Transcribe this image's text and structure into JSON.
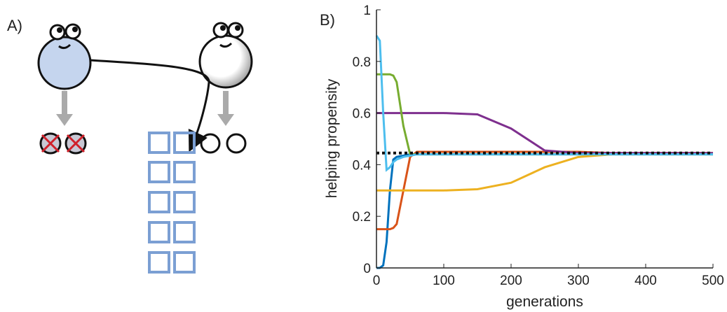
{
  "panel_a_label": "A)",
  "chart_data": {
    "type": "line",
    "panel_label": "B)",
    "xlabel": "generations",
    "ylabel": "helping propensity",
    "x": [
      0,
      5,
      10,
      15,
      20,
      25,
      30,
      40,
      50,
      60,
      80,
      100,
      150,
      200,
      250,
      300,
      350,
      400,
      450,
      500
    ],
    "series": [
      {
        "color": "#0072BD",
        "values": [
          0,
          0,
          0.01,
          0.1,
          0.3,
          0.42,
          0.43,
          0.435,
          0.44,
          0.44,
          0.44,
          0.44,
          0.44,
          0.44,
          0.44,
          0.44,
          0.44,
          0.44,
          0.44,
          0.44
        ]
      },
      {
        "color": "#D95319",
        "values": [
          0.15,
          0.15,
          0.15,
          0.15,
          0.15,
          0.155,
          0.17,
          0.3,
          0.43,
          0.45,
          0.45,
          0.45,
          0.45,
          0.45,
          0.45,
          0.45,
          0.445,
          0.445,
          0.445,
          0.445
        ]
      },
      {
        "color": "#EDB120",
        "values": [
          0.3,
          0.3,
          0.3,
          0.3,
          0.3,
          0.3,
          0.3,
          0.3,
          0.3,
          0.3,
          0.3,
          0.3,
          0.305,
          0.33,
          0.39,
          0.43,
          0.44,
          0.445,
          0.445,
          0.445
        ]
      },
      {
        "color": "#7E2F8E",
        "values": [
          0.6,
          0.6,
          0.6,
          0.6,
          0.6,
          0.6,
          0.6,
          0.6,
          0.6,
          0.6,
          0.6,
          0.6,
          0.595,
          0.54,
          0.455,
          0.445,
          0.445,
          0.445,
          0.445,
          0.445
        ]
      },
      {
        "color": "#77AC30",
        "values": [
          0.75,
          0.75,
          0.75,
          0.75,
          0.75,
          0.745,
          0.72,
          0.55,
          0.44,
          0.44,
          0.44,
          0.44,
          0.44,
          0.44,
          0.44,
          0.44,
          0.44,
          0.44,
          0.44,
          0.44
        ]
      },
      {
        "color": "#4DBEEE",
        "values": [
          0.9,
          0.88,
          0.6,
          0.38,
          0.39,
          0.41,
          0.42,
          0.43,
          0.435,
          0.44,
          0.44,
          0.44,
          0.44,
          0.44,
          0.44,
          0.44,
          0.44,
          0.44,
          0.44,
          0.44
        ]
      }
    ],
    "reference_line": 0.445,
    "xlim": [
      0,
      500
    ],
    "xticks": [
      0,
      100,
      200,
      300,
      400,
      500
    ],
    "ylim": [
      0,
      1
    ],
    "yticks": [
      0,
      0.2,
      0.4,
      0.6,
      0.8,
      1
    ]
  }
}
